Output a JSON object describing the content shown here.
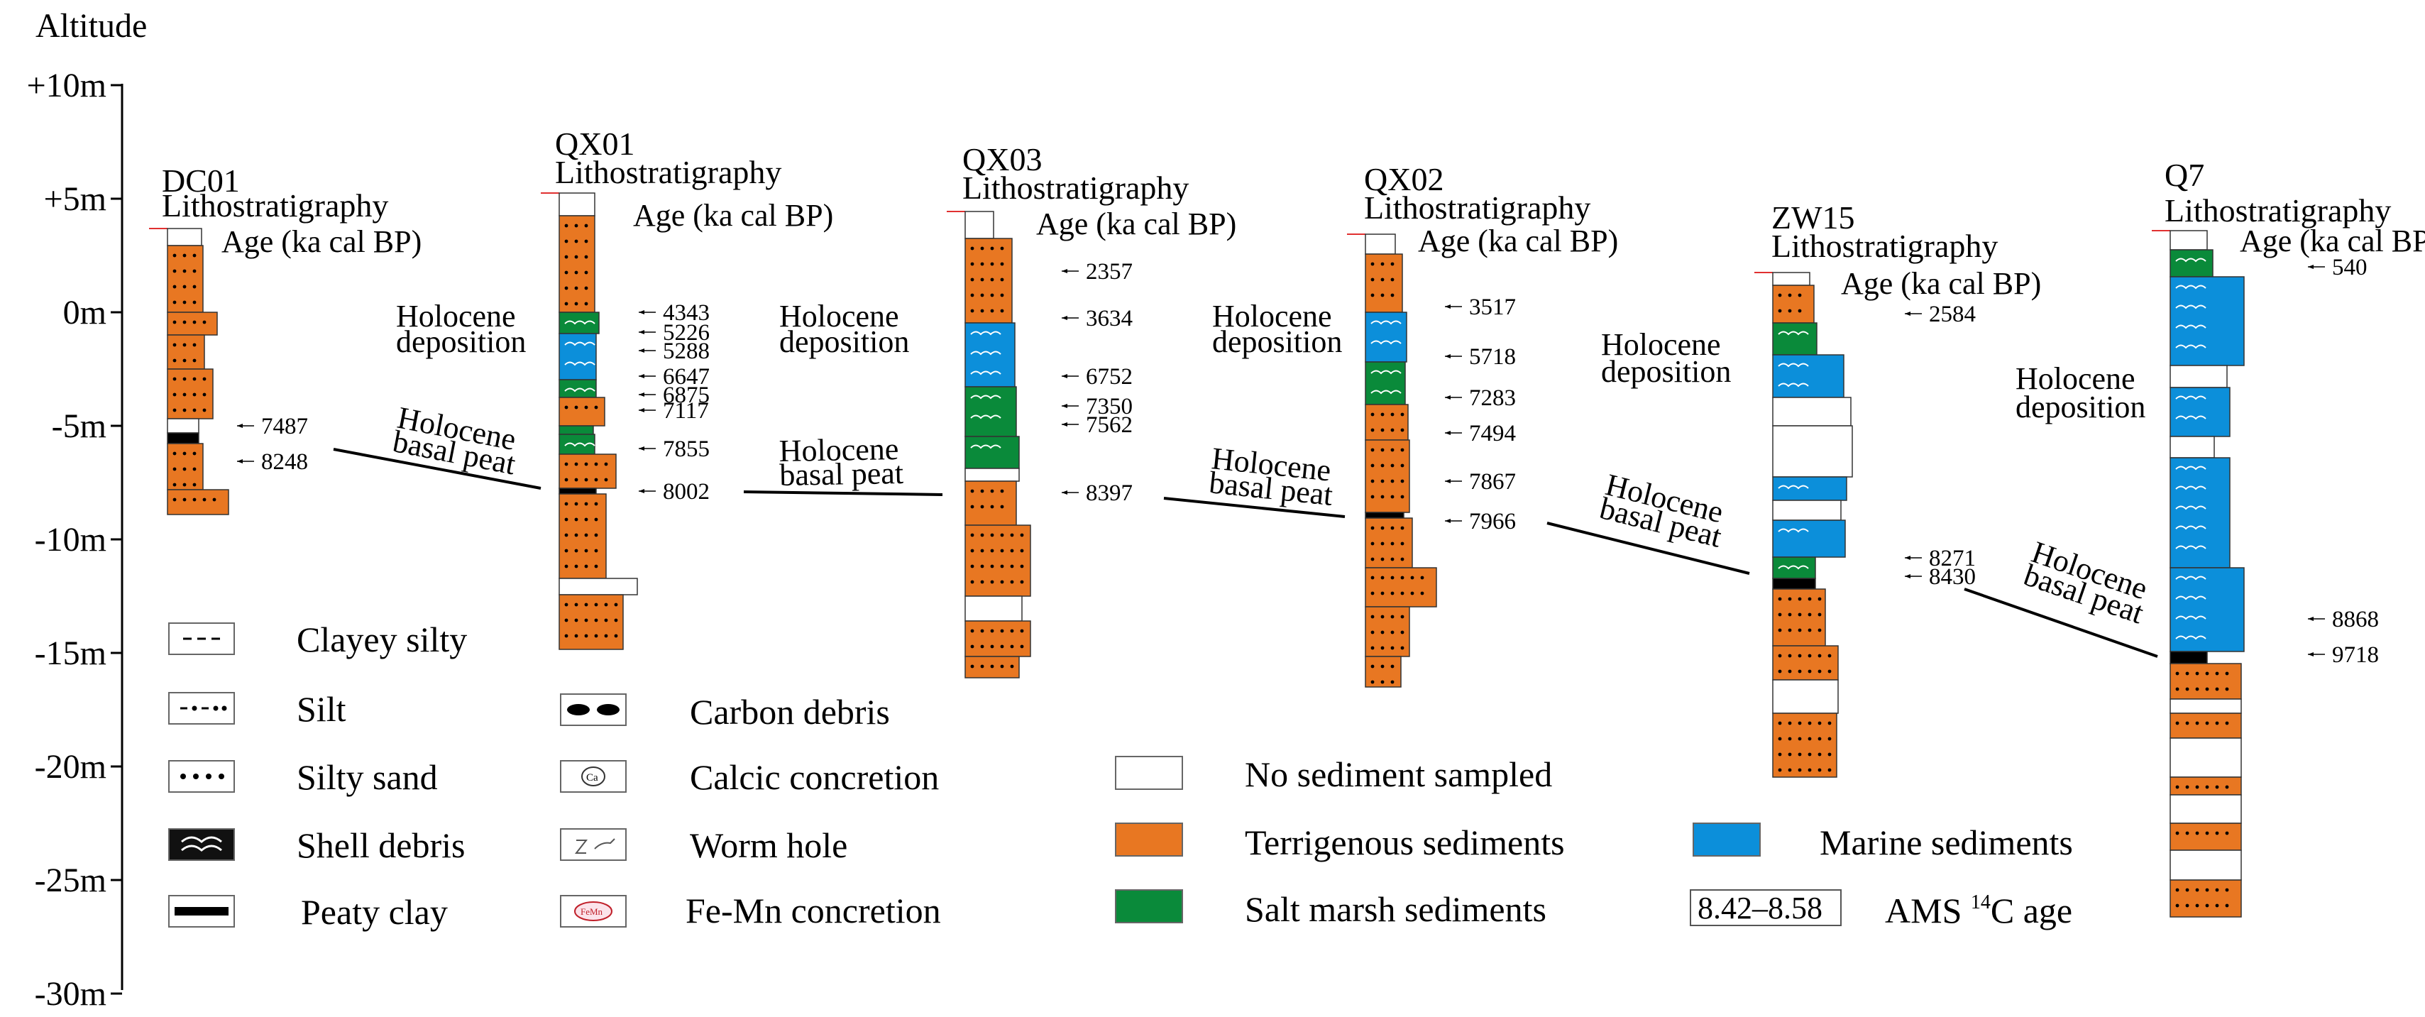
{
  "axis": {
    "title": "Altitude",
    "ticks": [
      {
        "label": "+10m",
        "value": 10
      },
      {
        "label": "+5m",
        "value": 5
      },
      {
        "label": "0m",
        "value": 0
      },
      {
        "label": "-5m",
        "value": -5
      },
      {
        "label": "-10m",
        "value": -10
      },
      {
        "label": "-15m",
        "value": -15
      },
      {
        "label": "-20m",
        "value": -20
      },
      {
        "label": "-25m",
        "value": -25
      },
      {
        "label": "-30m",
        "value": -30
      }
    ]
  },
  "cores": [
    {
      "id": "DC01",
      "name": "DC01",
      "subtitle": "Lithostratigraphy",
      "age_header": "Age (ka cal BP)",
      "ages": [
        "7487",
        "8248"
      ],
      "holocene_label": []
    },
    {
      "id": "QX01",
      "name": "QX01",
      "subtitle": "Lithostratigraphy",
      "age_header": "Age (ka cal BP)",
      "ages": [
        "4343",
        "5226",
        "5288",
        "6647",
        "6875",
        "7117",
        "7855",
        "8002"
      ],
      "holocene_label": [
        "Holocene",
        "deposition"
      ]
    },
    {
      "id": "QX03",
      "name": "QX03",
      "subtitle": "Lithostratigraphy",
      "age_header": "Age (ka cal BP)",
      "ages": [
        "2357",
        "3634",
        "6752",
        "7350",
        "7562",
        "8397"
      ],
      "holocene_label": [
        "Holocene",
        "deposition"
      ]
    },
    {
      "id": "QX02",
      "name": "QX02",
      "subtitle": "Lithostratigraphy",
      "age_header": "Age (ka cal BP)",
      "ages": [
        "3517",
        "5718",
        "7283",
        "7494",
        "7867",
        "7966"
      ],
      "holocene_label": [
        "Holocene",
        "deposition"
      ]
    },
    {
      "id": "ZW15",
      "name": "ZW15",
      "subtitle": "Lithostratigraphy",
      "age_header": "Age (ka cal BP)",
      "ages": [
        "2584",
        "8271",
        "8430"
      ],
      "holocene_label": [
        "Holocene",
        "deposition"
      ]
    },
    {
      "id": "Q7",
      "name": "Q7",
      "subtitle": "Lithostratigraphy",
      "age_header": "Age (ka cal BP)",
      "ages": [
        "540",
        "8868",
        "9718"
      ],
      "holocene_label": [
        "Holocene",
        "deposition"
      ]
    }
  ],
  "basal_peat_labels": [
    {
      "line1": "Holocene",
      "line2": "basal peat"
    },
    {
      "line1": "Holocene",
      "line2": "basal peat"
    },
    {
      "line1": "Holocene",
      "line2": "basal peat"
    },
    {
      "line1": "Holocene",
      "line2": "basal peat"
    },
    {
      "line1": "Holocene",
      "line2": "basal peat"
    }
  ],
  "legend": {
    "clayey_silty": "Clayey silty",
    "silt": "Silt",
    "silty_sand": "Silty sand",
    "shell_debris": "Shell debris",
    "peaty_clay": "Peaty clay",
    "carbon_debris": "Carbon debris",
    "calcic_concretion": "Calcic concretion",
    "worm_hole": "Worm hole",
    "fe_mn_concretion": "Fe-Mn concretion",
    "no_sediment": "No sediment sampled",
    "terrigenous": "Terrigenous sediments",
    "salt_marsh": "Salt marsh sediments",
    "marine": "Marine sediments",
    "ams_box": "8.42–8.58",
    "ams_label_pre": "AMS ",
    "ams_sup": "14",
    "ams_label_post": "C age",
    "ca_symbol": "Ca",
    "femn_symbol": "FeMn"
  },
  "colors": {
    "terrigenous": "#E87722",
    "salt_marsh": "#0A8A3A",
    "marine": "#0C8FDA",
    "peat": "#000000",
    "no_sediment": "#FFFFFF",
    "surface_tick": "#E03030"
  }
}
